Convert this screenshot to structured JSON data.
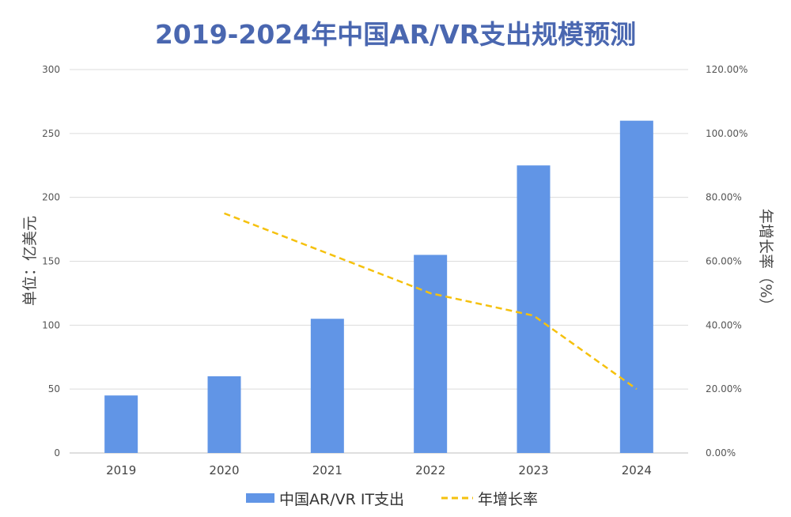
{
  "chart_data": {
    "type": "bar",
    "title": "2019-2024年中国AR/VR支出规模预测",
    "categories": [
      "2019",
      "2020",
      "2021",
      "2022",
      "2023",
      "2024"
    ],
    "y_left": {
      "label": "单位：亿美元",
      "lim": [
        0,
        300
      ],
      "ticks": [
        "0",
        "50",
        "100",
        "150",
        "200",
        "250",
        "300"
      ]
    },
    "y_right": {
      "label": "年增长率（%）",
      "lim": [
        0,
        1.2
      ],
      "ticks": [
        "0.00%",
        "20.00%",
        "40.00%",
        "60.00%",
        "80.00%",
        "100.00%",
        "120.00%"
      ]
    },
    "series": [
      {
        "name": "中国AR/VR IT支出",
        "type": "bar",
        "axis": "left",
        "color": "#6195e6",
        "values": [
          45,
          60,
          105,
          155,
          225,
          260
        ]
      },
      {
        "name": "年增长率",
        "type": "line",
        "axis": "right",
        "color": "#f5c10e",
        "dashed": true,
        "values": [
          null,
          0.75,
          0.625,
          0.5,
          0.43,
          0.2
        ]
      }
    ],
    "grid": true,
    "legend_position": "bottom"
  }
}
